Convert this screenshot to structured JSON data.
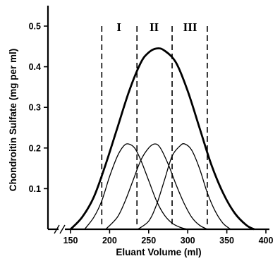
{
  "chart_data": {
    "type": "line",
    "title": "",
    "xlabel": "Eluant Volume (ml)",
    "ylabel": "Chondroitin Sulfate (mg per ml)",
    "xlim": [
      150,
      400
    ],
    "ylim": [
      0,
      0.5
    ],
    "x_axis_break_near_origin": true,
    "x_ticks": [
      150,
      200,
      250,
      300,
      350,
      400
    ],
    "x_tick_labels": [
      "150",
      "200",
      "250",
      "300",
      "350",
      "400"
    ],
    "y_ticks": [
      0.1,
      0.2,
      0.3,
      0.4,
      0.5
    ],
    "y_tick_labels": [
      "0.1",
      "0.2",
      "0.3",
      "0.4",
      "0.5"
    ],
    "grid": false,
    "legend": "none",
    "series": [
      {
        "style": "thick",
        "x": [
          150,
          165,
          180,
          195,
          210,
          225,
          240,
          250,
          260,
          270,
          285,
          300,
          315,
          330,
          345,
          360,
          375,
          385
        ],
        "y": [
          0.0,
          0.03,
          0.08,
          0.16,
          0.25,
          0.34,
          0.41,
          0.435,
          0.445,
          0.44,
          0.41,
          0.34,
          0.25,
          0.16,
          0.09,
          0.04,
          0.01,
          0.0
        ]
      },
      {
        "style": "thin",
        "x": [
          168,
          180,
          190,
          200,
          210,
          218,
          224,
          232,
          240,
          250,
          260,
          270,
          280,
          290,
          300
        ],
        "y": [
          0.0,
          0.03,
          0.07,
          0.13,
          0.18,
          0.205,
          0.21,
          0.2,
          0.17,
          0.12,
          0.07,
          0.035,
          0.015,
          0.005,
          0.0
        ]
      },
      {
        "style": "thin",
        "x": [
          195,
          210,
          220,
          230,
          240,
          250,
          258,
          265,
          275,
          285,
          295,
          305,
          315,
          325
        ],
        "y": [
          0.0,
          0.03,
          0.07,
          0.12,
          0.17,
          0.2,
          0.21,
          0.2,
          0.16,
          0.11,
          0.065,
          0.03,
          0.01,
          0.0
        ]
      },
      {
        "style": "thin",
        "x": [
          236,
          250,
          260,
          270,
          280,
          290,
          296,
          305,
          315,
          325,
          335,
          345,
          355
        ],
        "y": [
          0.0,
          0.02,
          0.06,
          0.12,
          0.18,
          0.205,
          0.21,
          0.195,
          0.15,
          0.09,
          0.045,
          0.015,
          0.0
        ]
      }
    ],
    "divider_lines_x": [
      190,
      235,
      280,
      325
    ],
    "fraction_labels": [
      {
        "text": "I",
        "x": 212
      },
      {
        "text": "II",
        "x": 257
      },
      {
        "text": "III",
        "x": 303
      }
    ]
  }
}
